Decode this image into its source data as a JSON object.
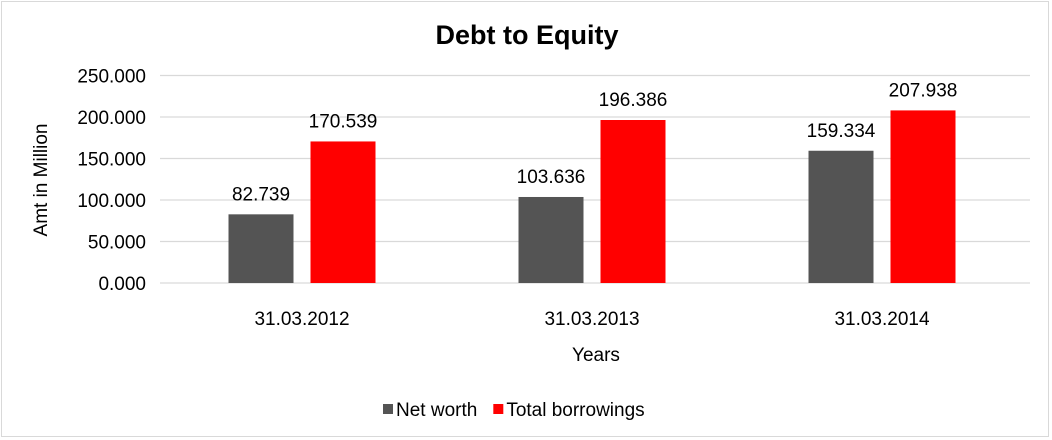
{
  "chart_data": {
    "type": "bar",
    "title": "Debt to Equity",
    "xlabel": "Years",
    "ylabel": "Amt in Million",
    "categories": [
      "31.03.2012",
      "31.03.2013",
      "31.03.2014"
    ],
    "series": [
      {
        "name": "Net worth",
        "values": [
          82.739,
          103.636,
          159.334
        ],
        "color": "#545454",
        "labels": [
          "82.739",
          "103.636",
          "159.334"
        ]
      },
      {
        "name": "Total borrowings",
        "values": [
          170.539,
          196.386,
          207.938
        ],
        "color": "#ff0000",
        "labels": [
          "170.539",
          "196.386",
          "207.938"
        ]
      }
    ],
    "ylim": [
      0,
      250
    ],
    "yticks": [
      "0.000",
      "50.000",
      "100.000",
      "150.000",
      "200.000",
      "250.000"
    ],
    "grid": true,
    "gridColor": "#d9d9d9",
    "legend": "bottom"
  }
}
